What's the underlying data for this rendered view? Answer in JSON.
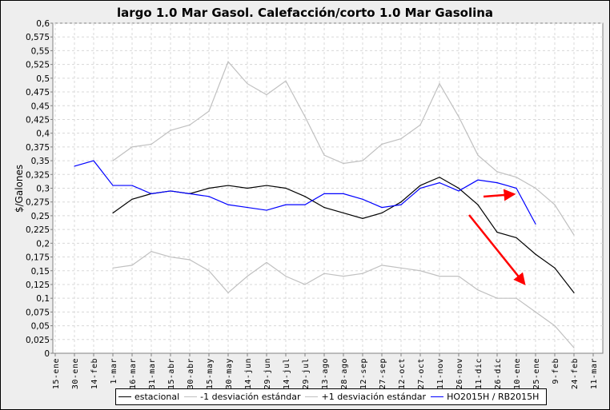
{
  "chart_data": {
    "type": "line",
    "title": "largo 1.0 Mar Gasol. Calefacción/corto 1.0 Mar Gasolina",
    "xlabel": "",
    "ylabel": "$/Galones",
    "ylim": [
      0,
      0.6
    ],
    "ytick_step": 0.025,
    "grid": true,
    "legend_placement": "bottom",
    "categories": [
      "15-ene",
      "30-ene",
      "14-feb",
      "1-mar",
      "16-mar",
      "31-mar",
      "15-abr",
      "30-abr",
      "15-may",
      "30-may",
      "14-jun",
      "29-jun",
      "14-jul",
      "29-jul",
      "13-ago",
      "28-ago",
      "12-sep",
      "27-sep",
      "12-oct",
      "27-oct",
      "11-nov",
      "26-nov",
      "11-dic",
      "26-dic",
      "10-ene",
      "25-ene",
      "9-feb",
      "24-feb",
      "11-mar"
    ],
    "series": [
      {
        "name": "estacional",
        "color": "#000000",
        "values": [
          null,
          null,
          null,
          0.255,
          0.28,
          0.29,
          0.295,
          0.29,
          0.3,
          0.305,
          0.3,
          0.305,
          0.3,
          0.285,
          0.265,
          0.255,
          0.245,
          0.255,
          0.275,
          0.305,
          0.32,
          0.3,
          0.27,
          0.22,
          0.21,
          0.18,
          0.155,
          0.11,
          null
        ]
      },
      {
        "name": "-1 desviación estándar",
        "color": "#c0c0c0",
        "values": [
          null,
          null,
          null,
          0.155,
          0.16,
          0.185,
          0.175,
          0.17,
          0.15,
          0.11,
          0.14,
          0.165,
          0.14,
          0.125,
          0.145,
          0.14,
          0.145,
          0.16,
          0.155,
          0.15,
          0.14,
          0.14,
          0.115,
          0.1,
          0.1,
          0.075,
          0.05,
          0.01,
          null
        ]
      },
      {
        "name": "+1 desviación estándar",
        "color": "#c0c0c0",
        "values": [
          null,
          null,
          null,
          0.35,
          0.375,
          0.38,
          0.405,
          0.415,
          0.44,
          0.53,
          0.49,
          0.47,
          0.495,
          0.43,
          0.36,
          0.345,
          0.35,
          0.38,
          0.39,
          0.415,
          0.49,
          0.43,
          0.36,
          0.33,
          0.32,
          0.3,
          0.27,
          0.215,
          null
        ]
      },
      {
        "name": "HO2015H / RB2015H",
        "color": "#0000ff",
        "values": [
          null,
          0.34,
          0.35,
          0.305,
          0.305,
          0.29,
          0.295,
          0.29,
          0.285,
          0.27,
          0.265,
          0.26,
          0.27,
          0.27,
          0.29,
          0.29,
          0.28,
          0.265,
          0.27,
          0.3,
          0.31,
          0.295,
          0.315,
          0.31,
          0.3,
          0.235,
          null,
          null,
          null
        ]
      }
    ],
    "annotations": [
      "red-arrow-right",
      "red-arrow-down-right"
    ]
  }
}
